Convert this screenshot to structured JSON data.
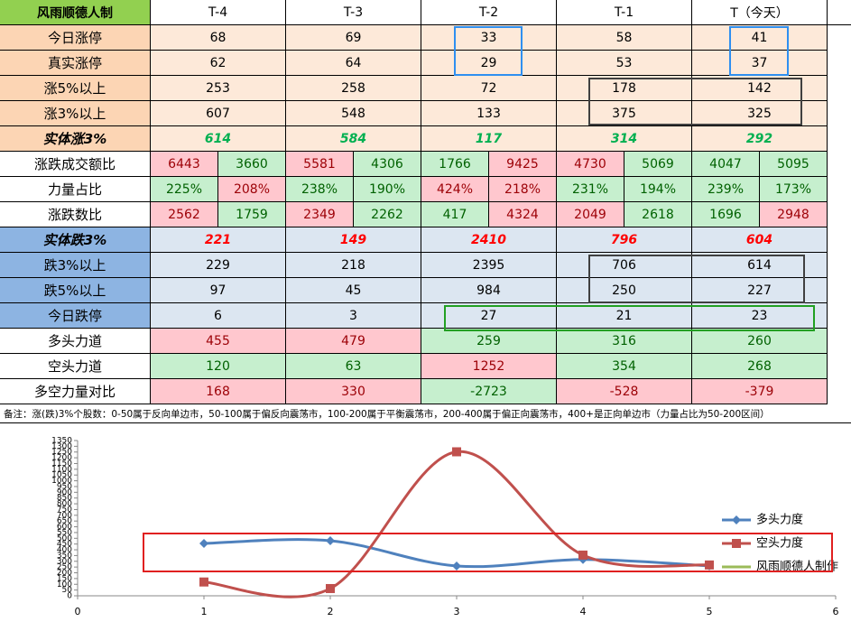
{
  "table": {
    "header": [
      "风雨顺德人制",
      "T-4",
      "T-3",
      "T-2",
      "T-1",
      "T（今天）"
    ],
    "rows": [
      {
        "label": "今日涨停",
        "values": [
          68,
          69,
          33,
          58,
          41
        ]
      },
      {
        "label": "真实涨停",
        "values": [
          62,
          64,
          29,
          53,
          37
        ]
      },
      {
        "label": "涨5%以上",
        "values": [
          253,
          258,
          72,
          178,
          142
        ]
      },
      {
        "label": "涨3%以上",
        "values": [
          607,
          548,
          133,
          375,
          325
        ]
      },
      {
        "label": "实体涨3%",
        "values": [
          614,
          584,
          117,
          314,
          292
        ]
      },
      {
        "label": "涨跌成交额比",
        "values": [
          [
            6443,
            3660
          ],
          [
            5581,
            4306
          ],
          [
            1766,
            9425
          ],
          [
            4730,
            5069
          ],
          [
            4047,
            5095
          ]
        ]
      },
      {
        "label": "力量占比",
        "values": [
          [
            "225%",
            "208%"
          ],
          [
            "238%",
            "190%"
          ],
          [
            "424%",
            "218%"
          ],
          [
            "231%",
            "194%"
          ],
          [
            "239%",
            "173%"
          ]
        ]
      },
      {
        "label": "涨跌数比",
        "values": [
          [
            2562,
            1759
          ],
          [
            2349,
            2262
          ],
          [
            417,
            4324
          ],
          [
            2049,
            2618
          ],
          [
            1696,
            2948
          ]
        ]
      },
      {
        "label": "实体跌3%",
        "values": [
          221,
          149,
          2410,
          796,
          604
        ]
      },
      {
        "label": "跌3%以上",
        "values": [
          229,
          218,
          2395,
          706,
          614
        ]
      },
      {
        "label": "跌5%以上",
        "values": [
          97,
          45,
          984,
          250,
          227
        ]
      },
      {
        "label": "今日跌停",
        "values": [
          6,
          3,
          27,
          21,
          23
        ]
      },
      {
        "label": "多头力道",
        "values": [
          455,
          479,
          259,
          316,
          260
        ]
      },
      {
        "label": "空头力道",
        "values": [
          120,
          63,
          1252,
          354,
          268
        ]
      },
      {
        "label": "多空力量对比",
        "values": [
          168,
          330,
          -2723,
          -528,
          -379
        ]
      }
    ],
    "note": "备注：涨(跌)3%个股数：0-50属于反向单边市，50-100属于偏反向震荡市，100-200属于平衡震荡市，200-400属于偏正向震荡市，400+是正向单边市（力量占比为50-200区间）"
  },
  "chart_data": {
    "type": "line",
    "x": [
      1,
      2,
      3,
      4,
      5
    ],
    "series": [
      {
        "name": "多头力度",
        "color": "#4f81bd",
        "values": [
          455,
          479,
          259,
          316,
          260
        ]
      },
      {
        "name": "空头力度",
        "color": "#c0504d",
        "values": [
          120,
          63,
          1252,
          354,
          268
        ]
      },
      {
        "name": "风雨顺德人制作",
        "color": "#9bbb59",
        "values": [
          null,
          null,
          null,
          null,
          null
        ]
      }
    ],
    "xlim": [
      0,
      6
    ],
    "xticks": [
      0,
      1,
      2,
      3,
      4,
      5,
      6
    ],
    "ylim": [
      0,
      1350
    ],
    "yticks": [
      0,
      50,
      100,
      150,
      200,
      250,
      300,
      350,
      400,
      450,
      500,
      550,
      600,
      650,
      700,
      750,
      800,
      850,
      900,
      950,
      1000,
      1050,
      1100,
      1150,
      1200,
      1250,
      1300,
      1350
    ],
    "legend": "right"
  }
}
